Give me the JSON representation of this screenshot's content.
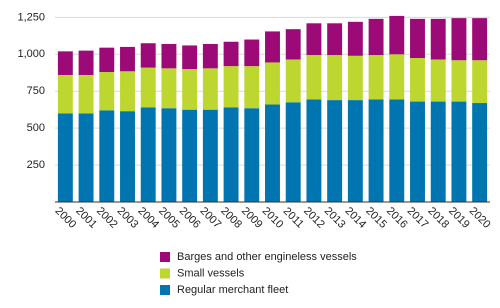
{
  "chart_data": {
    "type": "stacked_bar",
    "categories": [
      "2000",
      "2001",
      "2002",
      "2003",
      "2004",
      "2005",
      "2006",
      "2007",
      "2008",
      "2009",
      "2010",
      "2011",
      "2012",
      "2013",
      "2014",
      "2015",
      "2016",
      "2017",
      "2018",
      "2019",
      "2020"
    ],
    "series": [
      {
        "name": "Regular merchant fleet",
        "color": "#0075b0",
        "values": [
          600,
          600,
          620,
          615,
          640,
          635,
          625,
          625,
          640,
          635,
          660,
          675,
          695,
          690,
          690,
          695,
          695,
          680,
          680,
          680,
          670
        ]
      },
      {
        "name": "Small vessels",
        "color": "#bed630",
        "values": [
          260,
          260,
          260,
          270,
          270,
          270,
          275,
          280,
          280,
          285,
          285,
          290,
          300,
          305,
          300,
          300,
          305,
          295,
          285,
          280,
          290
        ]
      },
      {
        "name": "Barges and other engineless vessels",
        "color": "#9c0a78",
        "values": [
          160,
          165,
          165,
          165,
          165,
          165,
          160,
          165,
          165,
          180,
          210,
          205,
          215,
          215,
          230,
          245,
          260,
          265,
          275,
          285,
          285
        ]
      }
    ],
    "ylim": [
      0,
      1300
    ],
    "yticks": [
      {
        "value": 250,
        "label": "250"
      },
      {
        "value": 500,
        "label": "500"
      },
      {
        "value": 750,
        "label": "750"
      },
      {
        "value": 1000,
        "label": "1,000"
      },
      {
        "value": 1250,
        "label": "1,250"
      }
    ],
    "grid": true
  }
}
